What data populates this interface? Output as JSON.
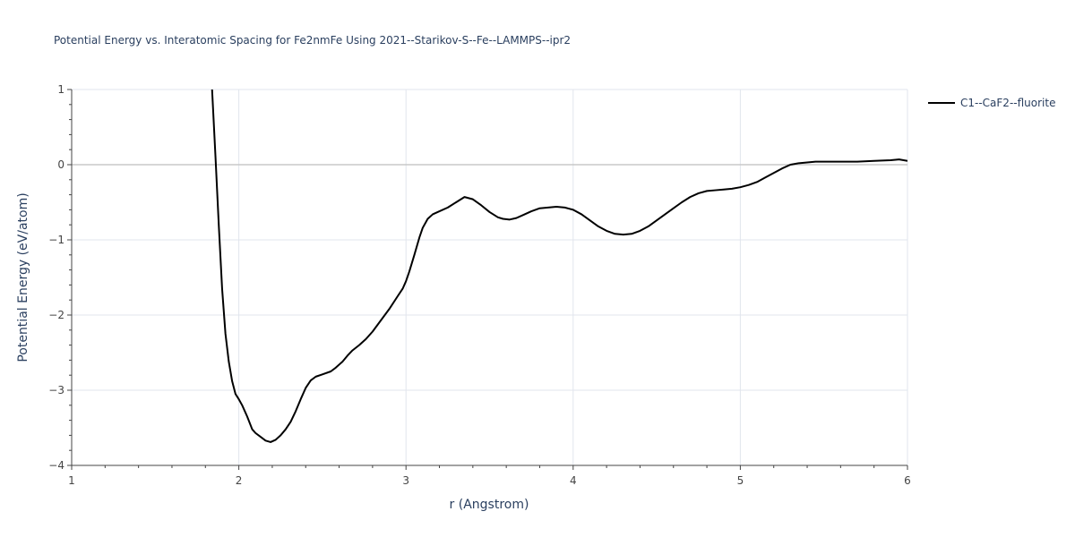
{
  "chart_data": {
    "type": "line",
    "title": "Potential Energy vs. Interatomic Spacing for Fe2nmFe Using 2021--Starikov-S--Fe--LAMMPS--ipr2",
    "xlabel": "r (Angstrom)",
    "ylabel": "Potential Energy (eV/atom)",
    "xlim": [
      1,
      6
    ],
    "ylim": [
      -4,
      1
    ],
    "x_ticks": [
      1,
      2,
      3,
      4,
      5,
      6
    ],
    "x_tick_labels": [
      "1",
      "2",
      "3",
      "4",
      "5",
      "6"
    ],
    "y_ticks": [
      -4,
      -3,
      -2,
      -1,
      0,
      1
    ],
    "y_tick_labels": [
      "−4",
      "−3",
      "−2",
      "−1",
      "0",
      "1"
    ],
    "grid": true,
    "legend_position": "top-right",
    "colors": {
      "line": "#000000",
      "grid": "#e1e5ed",
      "zeroline": "#c8c8c8",
      "text": "#2a3f5f",
      "tick_text": "#444444"
    },
    "series": [
      {
        "name": "C1--CaF2--fluorite",
        "x": [
          1.84,
          1.86,
          1.88,
          1.9,
          1.92,
          1.94,
          1.96,
          1.98,
          2.0,
          2.02,
          2.05,
          2.08,
          2.1,
          2.13,
          2.16,
          2.19,
          2.22,
          2.25,
          2.28,
          2.31,
          2.34,
          2.37,
          2.4,
          2.43,
          2.46,
          2.5,
          2.55,
          2.58,
          2.62,
          2.65,
          2.68,
          2.72,
          2.76,
          2.8,
          2.85,
          2.9,
          2.95,
          2.98,
          3.0,
          3.02,
          3.05,
          3.08,
          3.1,
          3.13,
          3.16,
          3.2,
          3.25,
          3.3,
          3.35,
          3.4,
          3.45,
          3.5,
          3.55,
          3.58,
          3.62,
          3.66,
          3.7,
          3.75,
          3.8,
          3.85,
          3.9,
          3.95,
          4.0,
          4.05,
          4.1,
          4.15,
          4.2,
          4.25,
          4.3,
          4.35,
          4.4,
          4.45,
          4.5,
          4.55,
          4.6,
          4.65,
          4.7,
          4.75,
          4.8,
          4.85,
          4.9,
          4.95,
          5.0,
          5.05,
          5.1,
          5.15,
          5.2,
          5.25,
          5.3,
          5.35,
          5.4,
          5.45,
          5.5,
          5.6,
          5.7,
          5.8,
          5.9,
          5.95,
          6.0
        ],
        "y": [
          1.0,
          0.12,
          -0.8,
          -1.65,
          -2.25,
          -2.62,
          -2.88,
          -3.05,
          -3.12,
          -3.2,
          -3.35,
          -3.52,
          -3.57,
          -3.62,
          -3.67,
          -3.69,
          -3.66,
          -3.6,
          -3.52,
          -3.42,
          -3.28,
          -3.12,
          -2.97,
          -2.87,
          -2.82,
          -2.79,
          -2.75,
          -2.7,
          -2.62,
          -2.54,
          -2.47,
          -2.4,
          -2.32,
          -2.22,
          -2.07,
          -1.92,
          -1.75,
          -1.65,
          -1.55,
          -1.42,
          -1.2,
          -0.97,
          -0.84,
          -0.72,
          -0.66,
          -0.62,
          -0.57,
          -0.5,
          -0.43,
          -0.46,
          -0.54,
          -0.63,
          -0.7,
          -0.72,
          -0.73,
          -0.71,
          -0.67,
          -0.62,
          -0.58,
          -0.57,
          -0.56,
          -0.57,
          -0.6,
          -0.66,
          -0.74,
          -0.82,
          -0.88,
          -0.92,
          -0.93,
          -0.92,
          -0.88,
          -0.82,
          -0.74,
          -0.66,
          -0.58,
          -0.5,
          -0.43,
          -0.38,
          -0.35,
          -0.34,
          -0.33,
          -0.32,
          -0.3,
          -0.27,
          -0.23,
          -0.17,
          -0.11,
          -0.05,
          0.0,
          0.02,
          0.03,
          0.04,
          0.04,
          0.04,
          0.04,
          0.05,
          0.06,
          0.07,
          0.05
        ]
      }
    ]
  }
}
